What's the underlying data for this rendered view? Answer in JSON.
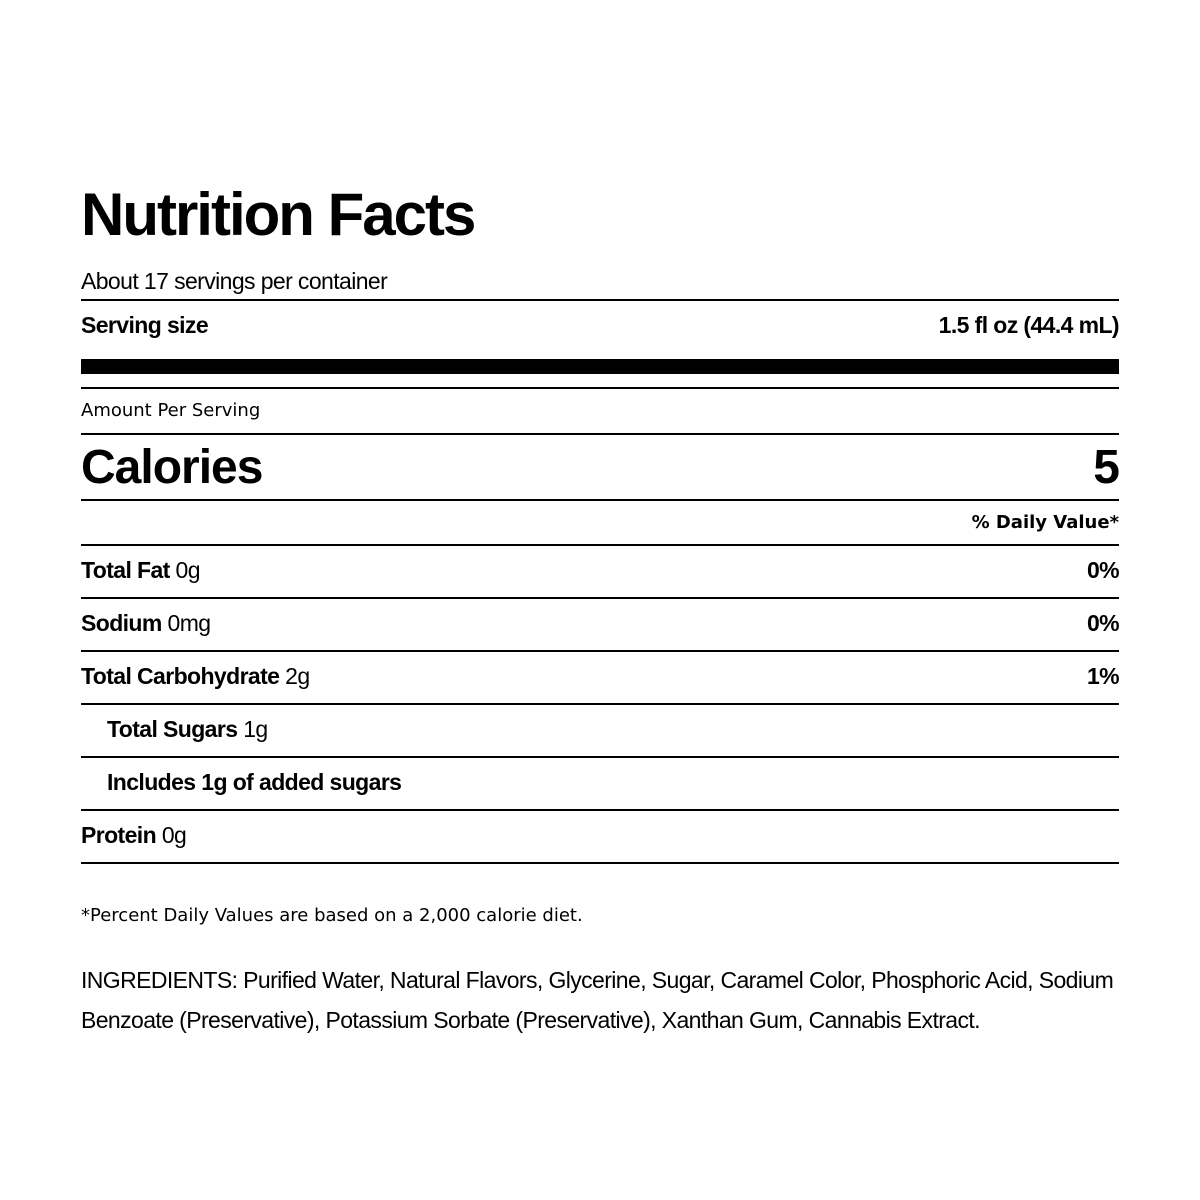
{
  "title": "Nutrition Facts",
  "servings_per_container": "About 17 servings per container",
  "serving_size": {
    "label": "Serving size",
    "value": "1.5 fl oz (44.4 mL)"
  },
  "amount_per_serving": "Amount Per Serving",
  "calories": {
    "label": "Calories",
    "value": "5"
  },
  "daily_value_header": "% Daily Value*",
  "nutrients": [
    {
      "label": "Total Fat",
      "amount": "0g",
      "dv": "0%"
    },
    {
      "label": "Sodium",
      "amount": "0mg",
      "dv": "0%"
    },
    {
      "label": "Total Carbohydrate",
      "amount": "2g",
      "dv": "1%"
    },
    {
      "label": "Total Sugars",
      "amount": "1g",
      "dv": ""
    },
    {
      "label": "Includes 1g of added sugars",
      "amount": "",
      "dv": ""
    },
    {
      "label": "Protein",
      "amount": "0g",
      "dv": ""
    }
  ],
  "footnote": "*Percent Daily Values are based on a 2,000 calorie diet.",
  "ingredients": "INGREDIENTS: Purified Water, Natural Flavors, Glycerine, Sugar, Caramel Color, Phosphoric Acid, Sodium Benzoate (Preservative), Potassium Sorbate (Preservative), Xanthan Gum, Cannabis Extract."
}
